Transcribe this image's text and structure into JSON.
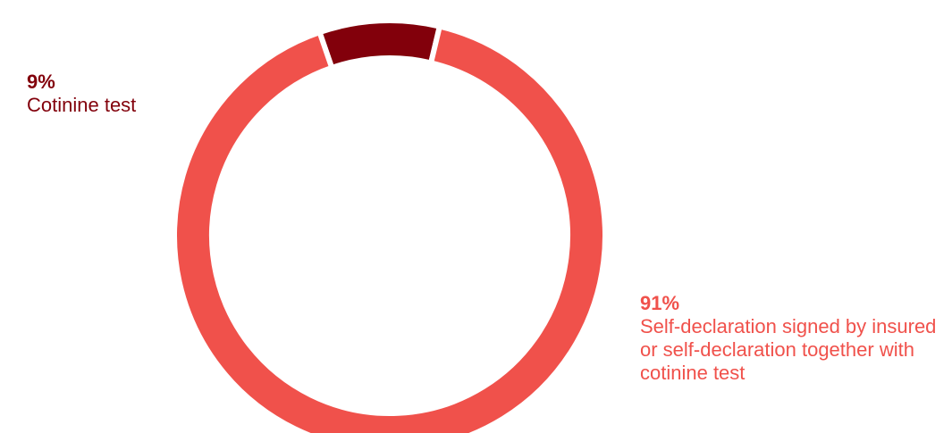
{
  "chart_data": {
    "type": "pie",
    "subtype": "donut",
    "series": [
      {
        "name": "Cotinine test",
        "value": 9,
        "label_value": "9%",
        "label": "Cotinine test",
        "color": "#82000b"
      },
      {
        "name": "Self-declaration signed by insured or self-declaration together with cotinine test",
        "value": 91,
        "label_value": "91%",
        "label": "Self-declaration signed by insured or self-declaration together with cotinine test",
        "color": "#f0514b"
      }
    ],
    "start_angle_deg": -19,
    "gap_color": "#ffffff"
  }
}
